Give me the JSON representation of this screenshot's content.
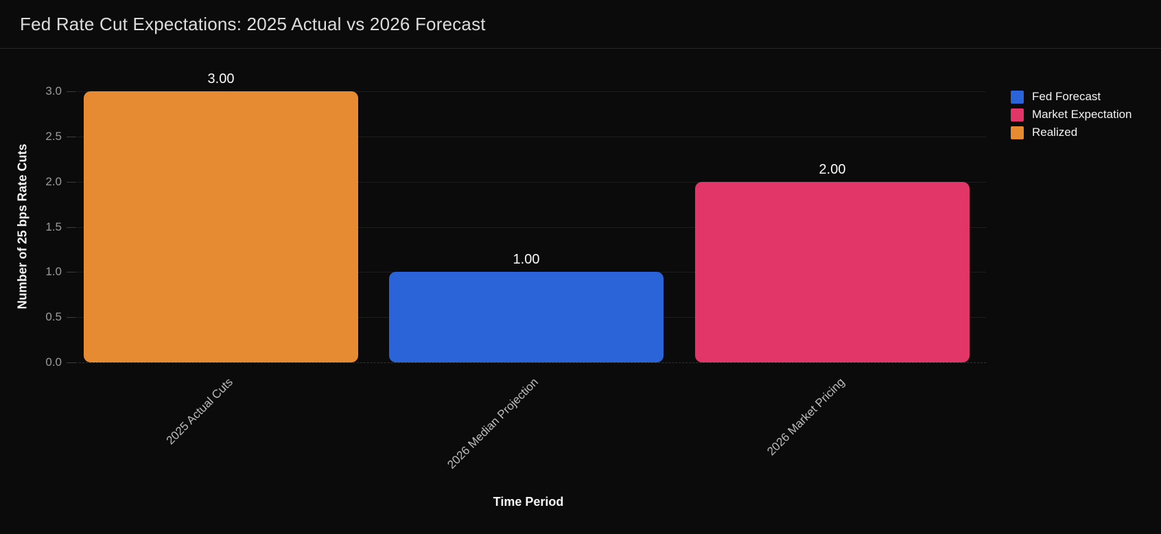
{
  "header": {
    "title": "Fed Rate Cut Expectations: 2025 Actual vs 2026 Forecast"
  },
  "chart_data": {
    "type": "bar",
    "title": "Fed Rate Cut Expectations: 2025 Actual vs 2026 Forecast",
    "categories": [
      "2025 Actual Cuts",
      "2026 Median Projection",
      "2026 Market Pricing"
    ],
    "values": [
      3.0,
      1.0,
      2.0
    ],
    "value_labels": [
      "3.00",
      "1.00",
      "2.00"
    ],
    "bar_series": [
      "Realized",
      "Fed Forecast",
      "Market Expectation"
    ],
    "bar_colors": [
      "#E78B33",
      "#2B63D9",
      "#E23568"
    ],
    "xlabel": "Time Period",
    "ylabel": "Number of 25 bps Rate Cuts",
    "ylim": [
      0,
      3
    ],
    "ytick_step": 0.5,
    "ytick_labels": [
      "0.0",
      "0.5",
      "1.0",
      "1.5",
      "2.0",
      "2.5",
      "3.0"
    ],
    "grid": true,
    "background_color": "#0b0b0b",
    "legend": {
      "position": "top-right",
      "items": [
        {
          "label": "Fed Forecast",
          "color": "#2B63D9"
        },
        {
          "label": "Market Expectation",
          "color": "#E23568"
        },
        {
          "label": "Realized",
          "color": "#E78B33"
        }
      ]
    }
  }
}
